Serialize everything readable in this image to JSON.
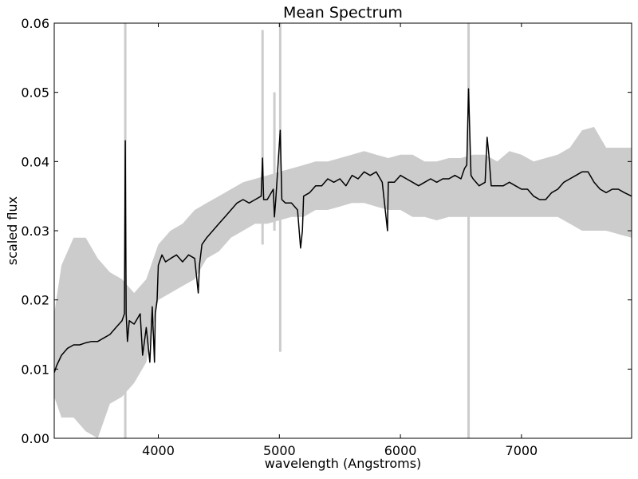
{
  "chart_data": {
    "type": "line",
    "title": "Mean Spectrum",
    "xlabel": "wavelength (Angstroms)",
    "ylabel": "scaled flux",
    "xlim": [
      3140,
      7910
    ],
    "ylim": [
      0.0,
      0.06
    ],
    "xticks": [
      4000,
      5000,
      6000,
      7000
    ],
    "xtick_labels": [
      "4000",
      "5000",
      "6000",
      "7000"
    ],
    "yticks": [
      0.0,
      0.01,
      0.02,
      0.03,
      0.04,
      0.05,
      0.06
    ],
    "ytick_labels": [
      "0.00",
      "0.01",
      "0.02",
      "0.03",
      "0.04",
      "0.05",
      "0.06"
    ],
    "grid": false,
    "colors": {
      "mean_line": "#000000",
      "band_fill": "#cccccc"
    },
    "series": [
      {
        "kind": "mean",
        "x": [
          3140,
          3160,
          3200,
          3250,
          3300,
          3350,
          3400,
          3450,
          3500,
          3550,
          3600,
          3650,
          3700,
          3720,
          3727,
          3734,
          3745,
          3760,
          3800,
          3850,
          3870,
          3900,
          3930,
          3950,
          3968,
          3975,
          3990,
          4000,
          4030,
          4060,
          4102,
          4150,
          4200,
          4250,
          4300,
          4330,
          4340,
          4360,
          4400,
          4450,
          4500,
          4550,
          4600,
          4650,
          4700,
          4750,
          4800,
          4850,
          4861,
          4870,
          4900,
          4950,
          4959,
          4970,
          5007,
          5020,
          5050,
          5100,
          5150,
          5175,
          5190,
          5200,
          5250,
          5300,
          5350,
          5400,
          5450,
          5500,
          5550,
          5600,
          5650,
          5700,
          5750,
          5800,
          5850,
          5893,
          5900,
          5950,
          6000,
          6050,
          6100,
          6150,
          6200,
          6250,
          6300,
          6350,
          6400,
          6450,
          6500,
          6530,
          6548,
          6563,
          6583,
          6600,
          6650,
          6700,
          6716,
          6731,
          6750,
          6800,
          6850,
          6900,
          6950,
          7000,
          7050,
          7100,
          7150,
          7200,
          7250,
          7300,
          7350,
          7400,
          7450,
          7500,
          7550,
          7600,
          7650,
          7700,
          7750,
          7800,
          7850,
          7910
        ],
        "y": [
          0.0095,
          0.0105,
          0.012,
          0.013,
          0.0135,
          0.0135,
          0.0138,
          0.014,
          0.014,
          0.0145,
          0.015,
          0.016,
          0.017,
          0.018,
          0.043,
          0.018,
          0.014,
          0.017,
          0.0165,
          0.018,
          0.012,
          0.016,
          0.011,
          0.019,
          0.011,
          0.018,
          0.02,
          0.025,
          0.0265,
          0.0255,
          0.026,
          0.0265,
          0.0255,
          0.0265,
          0.026,
          0.021,
          0.025,
          0.028,
          0.029,
          0.03,
          0.031,
          0.032,
          0.033,
          0.034,
          0.0345,
          0.034,
          0.0345,
          0.035,
          0.0405,
          0.0345,
          0.0345,
          0.036,
          0.032,
          0.0345,
          0.0445,
          0.0345,
          0.034,
          0.034,
          0.033,
          0.0275,
          0.03,
          0.035,
          0.0355,
          0.0365,
          0.0365,
          0.0375,
          0.037,
          0.0375,
          0.0365,
          0.038,
          0.0375,
          0.0385,
          0.038,
          0.0385,
          0.037,
          0.03,
          0.037,
          0.037,
          0.038,
          0.0375,
          0.037,
          0.0365,
          0.037,
          0.0375,
          0.037,
          0.0375,
          0.0375,
          0.038,
          0.0375,
          0.039,
          0.0395,
          0.0505,
          0.038,
          0.0375,
          0.0365,
          0.037,
          0.0435,
          0.041,
          0.0365,
          0.0365,
          0.0365,
          0.037,
          0.0365,
          0.036,
          0.036,
          0.035,
          0.0345,
          0.0345,
          0.0355,
          0.036,
          0.037,
          0.0375,
          0.038,
          0.0385,
          0.0385,
          0.037,
          0.036,
          0.0355,
          0.036,
          0.036,
          0.0355,
          0.035
        ]
      },
      {
        "kind": "band",
        "x": [
          3140,
          3200,
          3300,
          3400,
          3500,
          3600,
          3700,
          3800,
          3900,
          4000,
          4100,
          4200,
          4300,
          4400,
          4500,
          4600,
          4700,
          4800,
          4900,
          5000,
          5100,
          5200,
          5300,
          5400,
          5500,
          5600,
          5700,
          5800,
          5900,
          6000,
          6100,
          6200,
          6300,
          6400,
          6500,
          6600,
          6700,
          6800,
          6900,
          7000,
          7100,
          7200,
          7300,
          7400,
          7500,
          7600,
          7700,
          7800,
          7910
        ],
        "upper": [
          0.018,
          0.025,
          0.029,
          0.029,
          0.026,
          0.024,
          0.023,
          0.021,
          0.023,
          0.028,
          0.03,
          0.031,
          0.033,
          0.034,
          0.035,
          0.036,
          0.037,
          0.0375,
          0.038,
          0.0385,
          0.039,
          0.0395,
          0.04,
          0.04,
          0.0405,
          0.041,
          0.0415,
          0.041,
          0.0405,
          0.041,
          0.041,
          0.04,
          0.04,
          0.0405,
          0.0405,
          0.041,
          0.041,
          0.04,
          0.0415,
          0.041,
          0.04,
          0.0405,
          0.041,
          0.042,
          0.0445,
          0.045,
          0.042,
          0.042,
          0.042
        ],
        "lower": [
          0.006,
          0.003,
          0.003,
          0.001,
          0.0,
          0.005,
          0.006,
          0.008,
          0.011,
          0.02,
          0.021,
          0.022,
          0.023,
          0.026,
          0.027,
          0.029,
          0.03,
          0.031,
          0.031,
          0.0315,
          0.032,
          0.032,
          0.033,
          0.033,
          0.0335,
          0.034,
          0.034,
          0.0335,
          0.033,
          0.033,
          0.032,
          0.032,
          0.0315,
          0.032,
          0.032,
          0.032,
          0.032,
          0.032,
          0.032,
          0.032,
          0.032,
          0.032,
          0.032,
          0.031,
          0.03,
          0.03,
          0.03,
          0.0295,
          0.029
        ]
      },
      {
        "kind": "band-spikes",
        "x": [
          3727,
          4861,
          4959,
          5007,
          6563
        ],
        "top": [
          0.06,
          0.059,
          0.05,
          0.06,
          0.06
        ],
        "bottom": [
          0.0,
          0.028,
          0.03,
          0.0125,
          0.0
        ]
      }
    ]
  }
}
